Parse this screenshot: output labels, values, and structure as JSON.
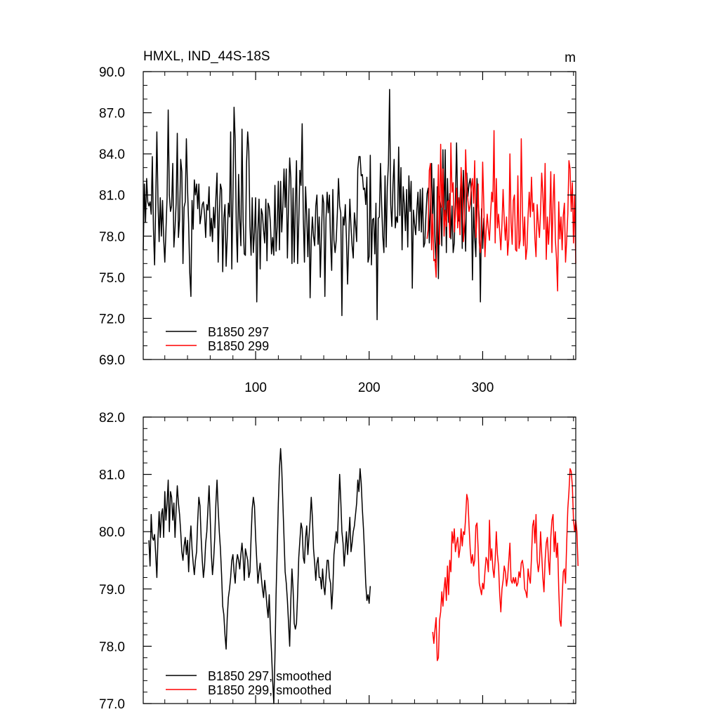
{
  "chart_data": [
    {
      "type": "line",
      "title": "HMXL, IND_44S-18S",
      "units": "m",
      "xlim": [
        1,
        382
      ],
      "ylim": [
        69.0,
        90.0
      ],
      "x_ticks": [
        100,
        200,
        300
      ],
      "x_tick_labels": [
        "100",
        "200",
        "300"
      ],
      "y_ticks": [
        69.0,
        72.0,
        75.0,
        78.0,
        81.0,
        84.0,
        87.0,
        90.0
      ],
      "y_tick_labels": [
        "69.0",
        "72.0",
        "75.0",
        "78.0",
        "81.0",
        "84.0",
        "87.0",
        "90.0"
      ],
      "grid": false,
      "legend_position": "bottom-left",
      "series": [
        {
          "name": "B1850 297",
          "color": "#000000",
          "x_start": 1,
          "values": [
            77.0,
            81.8,
            79.0,
            82.2,
            80.5,
            80.2,
            80.5,
            79.6,
            83.8,
            78.5,
            75.9,
            80.4,
            85.6,
            80.5,
            77.6,
            80.8,
            78.0,
            80.6,
            77.8,
            76.1,
            78.4,
            80.8,
            87.2,
            81.0,
            79.8,
            80.2,
            83.3,
            77.2,
            78.6,
            80.4,
            85.5,
            77.9,
            79.2,
            83.6,
            82.7,
            76.0,
            80.1,
            80.5,
            85.1,
            81.5,
            78.9,
            75.3,
            73.6,
            80.6,
            78.5,
            82.1,
            81.0,
            81.8,
            80.0,
            81.8,
            78.9,
            79.5,
            80.3,
            80.5,
            79.6,
            77.9,
            80.3,
            79.9,
            81.6,
            78.0,
            79.3,
            77.6,
            80.1,
            78.6,
            80.8,
            82.6,
            76.1,
            79.6,
            81.8,
            81.4,
            75.4,
            79.3,
            80.3,
            75.8,
            77.9,
            80.4,
            79.4,
            85.6,
            75.6,
            80.8,
            87.4,
            85.0,
            78.5,
            76.1,
            82.5,
            79.2,
            77.3,
            85.8,
            79.1,
            76.7,
            76.6,
            83.3,
            85.6,
            84.2,
            78.7,
            76.6,
            80.8,
            76.8,
            78.3,
            80.8,
            73.2,
            78.4,
            80.7,
            75.6,
            80.0,
            79.6,
            78.4,
            77.5,
            80.7,
            76.2,
            80.4,
            80.1,
            79.0,
            76.7,
            77.9,
            76.6,
            81.7,
            76.9,
            78.7,
            82.0,
            77.0,
            82.0,
            78.3,
            80.2,
            82.9,
            80.1,
            82.9,
            76.4,
            80.2,
            83.7,
            82.2,
            76.0,
            81.5,
            76.1,
            80.4,
            83.5,
            76.0,
            79.0,
            82.8,
            81.7,
            86.2,
            79.3,
            76.1,
            81.6,
            79.5,
            76.5,
            80.0,
            73.5,
            77.7,
            79.4,
            78.0,
            77.3,
            80.2,
            81.0,
            77.4,
            79.4,
            75.0,
            78.2,
            81.0,
            80.4,
            73.6,
            79.3,
            81.2,
            79.7,
            81.0,
            77.6,
            75.5,
            81.4,
            77.7,
            76.8,
            77.7,
            79.7,
            82.2,
            80.2,
            79.7,
            72.2,
            79.4,
            78.8,
            80.3,
            77.8,
            74.5,
            77.5,
            80.7,
            78.7,
            77.3,
            76.4,
            79.7,
            78.8,
            77.6,
            82.9,
            83.8,
            83.8,
            82.4,
            82.5,
            81.4,
            81.5,
            80.3,
            82.3,
            76.1,
            76.5,
            83.9,
            75.9,
            79.2,
            79.3,
            76.7,
            80.4,
            71.9,
            79.3,
            79.4,
            83.3,
            80.3,
            78.0,
            76.8,
            82.4,
            77.2,
            81.6,
            83.3,
            88.7,
            80.3,
            78.7,
            81.8,
            83.6,
            78.6,
            79.4,
            79.0,
            84.5,
            79.5,
            83.0,
            77.0,
            81.6,
            80.3,
            78.4,
            81.4,
            77.2,
            82.4,
            79.8,
            82.0,
            74.2,
            79.9,
            78.9,
            78.1,
            79.9,
            81.2,
            78.4,
            81.4,
            78.3,
            81.5,
            77.2,
            77.5,
            79.5,
            81.1,
            81.5,
            77.5,
            80.3,
            83.3,
            79.1,
            82.2,
            77.6,
            76.1,
            81.6,
            74.9,
            80.9,
            80.2,
            77.3,
            84.3,
            79.2,
            84.3,
            76.8,
            82.2,
            79.0,
            81.1,
            77.8,
            80.2,
            76.8,
            77.5,
            80.6,
            84.8,
            80.3,
            79.1,
            80.6,
            82.4,
            77.1,
            82.8,
            79.6,
            76.9,
            82.6,
            80.9,
            81.8,
            82.2,
            81.2,
            74.8,
            80.1,
            77.9,
            76.5,
            82.2,
            80.6,
            79.3,
            73.2,
            80.0,
            77.1,
            79.3,
            77.2
          ]
        },
        {
          "name": "B1850 299",
          "color": "#ff0000",
          "x_start": 251,
          "values": [
            77.8,
            78.5,
            82.8,
            83.3,
            77.0,
            79.6,
            76.2,
            76.3,
            75.0,
            79.2,
            83.2,
            77.4,
            84.7,
            80.1,
            82.9,
            78.0,
            79.9,
            78.7,
            80.5,
            80.6,
            77.9,
            84.8,
            81.2,
            81.9,
            78.3,
            79.6,
            81.5,
            78.6,
            80.8,
            78.1,
            83.0,
            81.3,
            77.6,
            79.0,
            84.3,
            81.5,
            80.6,
            79.8,
            80.3,
            81.6,
            82.2,
            80.4,
            83.5,
            77.9,
            79.4,
            81.8,
            77.5,
            76.8,
            78.3,
            83.4,
            80.3,
            76.5,
            78.4,
            79.6,
            78.5,
            77.7,
            79.6,
            81.2,
            80.5,
            85.7,
            77.5,
            82.2,
            78.6,
            79.6,
            78.3,
            77.0,
            78.9,
            81.4,
            79.1,
            77.7,
            79.4,
            76.6,
            77.8,
            84.0,
            79.0,
            77.4,
            80.6,
            81.0,
            77.0,
            76.9,
            82.4,
            77.1,
            77.7,
            85.1,
            79.9,
            77.3,
            79.4,
            76.3,
            77.1,
            79.5,
            81.2,
            79.4,
            82.3,
            79.8,
            80.4,
            77.8,
            76.5,
            80.3,
            78.9,
            77.9,
            79.8,
            82.6,
            81.1,
            78.5,
            83.3,
            76.3,
            79.4,
            77.4,
            79.2,
            82.7,
            76.8,
            80.5,
            82.5,
            77.8,
            76.4,
            74.0,
            80.5,
            77.8,
            79.4,
            77.0,
            79.5,
            80.4,
            76.1,
            77.7,
            79.6,
            83.5,
            82.9,
            79.8,
            81.9,
            77.5,
            81.0,
            76.0
          ]
        }
      ]
    },
    {
      "type": "line",
      "xlim": [
        1,
        382
      ],
      "ylim": [
        77.0,
        82.0
      ],
      "x_ticks": [
        100,
        200,
        300
      ],
      "x_tick_labels": [],
      "y_ticks": [
        77.0,
        78.0,
        79.0,
        80.0,
        81.0,
        82.0
      ],
      "y_tick_labels": [
        "77.0",
        "78.0",
        "79.0",
        "80.0",
        "81.0",
        "82.0"
      ],
      "grid": false,
      "legend_position": "bottom-left",
      "series": [
        {
          "name": "B1850 297, smoothed",
          "color": "#000000",
          "x_start": 6,
          "values": [
            79.85,
            79.4,
            80.3,
            79.9,
            79.85,
            79.95,
            79.6,
            79.2,
            79.9,
            80.35,
            79.9,
            80.3,
            80.4,
            79.9,
            80.7,
            80.2,
            80.5,
            80.9,
            80.0,
            80.7,
            80.6,
            80.2,
            80.5,
            79.9,
            80.4,
            80.8,
            80.5,
            80.3,
            80.0,
            79.65,
            79.5,
            79.75,
            79.9,
            79.6,
            79.85,
            79.3,
            79.8,
            80.1,
            79.7,
            79.45,
            79.25,
            79.5,
            79.65,
            80.2,
            80.6,
            80.45,
            79.9,
            79.5,
            79.2,
            79.4,
            79.8,
            80.0,
            80.4,
            80.8,
            80.25,
            79.6,
            79.25,
            79.5,
            79.9,
            80.5,
            80.9,
            80.4,
            80.0,
            79.7,
            79.25,
            78.7,
            78.55,
            78.2,
            77.95,
            78.5,
            78.85,
            79.0,
            79.2,
            79.5,
            79.6,
            79.3,
            79.1,
            79.45,
            79.6,
            79.5,
            79.35,
            79.6,
            79.8,
            79.55,
            79.15,
            79.7,
            79.6,
            79.5,
            79.2,
            79.3,
            79.9,
            80.4,
            80.6,
            80.45,
            79.9,
            79.5,
            79.1,
            79.3,
            79.45,
            79.2,
            79.0,
            78.85,
            79.15,
            78.95,
            78.7,
            78.5,
            78.9,
            78.3,
            77.9,
            77.4,
            77.0,
            77.8,
            78.9,
            79.7,
            80.5,
            81.1,
            81.45,
            81.1,
            80.5,
            79.9,
            79.3,
            79.1,
            78.8,
            78.4,
            78.0,
            78.8,
            79.35,
            79.0,
            78.4,
            78.3,
            78.4,
            78.9,
            79.55,
            79.85,
            80.15,
            80.05,
            79.55,
            79.45,
            79.9,
            80.1,
            79.6,
            79.9,
            80.2,
            80.6,
            80.25,
            79.7,
            79.45,
            79.15,
            79.45,
            79.55,
            79.2,
            79.2,
            79.0,
            79.35,
            79.05,
            78.9,
            79.2,
            79.5,
            79.5,
            79.2,
            79.1,
            78.65,
            79.0,
            79.6,
            79.8,
            80.0,
            79.8,
            80.4,
            81.0,
            80.55,
            80.0,
            79.8,
            79.4,
            79.7,
            80.0,
            79.6,
            79.9,
            80.25,
            79.65,
            79.8,
            80.0,
            80.1,
            80.3,
            80.5,
            80.9,
            80.7,
            81.1,
            80.85,
            80.4,
            80.05,
            79.6,
            79.1,
            78.8,
            78.9,
            78.75,
            79.05
          ]
        },
        {
          "name": "B1850 299, smoothed",
          "color": "#ff0000",
          "x_start": 256,
          "values": [
            78.25,
            78.05,
            78.3,
            78.5,
            77.75,
            77.8,
            78.45,
            78.6,
            78.95,
            78.7,
            79.0,
            79.2,
            78.8,
            79.4,
            78.9,
            79.5,
            79.3,
            80.0,
            79.8,
            80.05,
            79.65,
            79.8,
            79.9,
            79.55,
            79.7,
            80.05,
            79.75,
            80.0,
            79.95,
            80.25,
            80.65,
            80.55,
            80.1,
            79.7,
            79.45,
            79.6,
            79.4,
            79.5,
            80.1,
            80.15,
            79.7,
            79.1,
            79.0,
            78.9,
            79.1,
            79.0,
            79.3,
            79.55,
            79.5,
            79.3,
            80.2,
            79.5,
            79.7,
            79.35,
            79.2,
            79.5,
            80.0,
            79.6,
            79.4,
            78.9,
            78.6,
            79.0,
            79.15,
            79.4,
            79.3,
            79.05,
            79.2,
            79.5,
            79.8,
            79.15,
            79.1,
            79.2,
            79.1,
            79.2,
            79.05,
            79.1,
            79.3,
            79.2,
            79.45,
            79.5,
            79.35,
            79.0,
            78.95,
            78.85,
            79.35,
            79.2,
            79.1,
            79.55,
            80.1,
            80.2,
            79.8,
            80.3,
            79.5,
            79.3,
            79.45,
            80.0,
            79.6,
            79.2,
            78.95,
            79.5,
            79.8,
            79.9,
            79.5,
            79.25,
            79.9,
            80.2,
            80.3,
            79.65,
            80.0,
            79.55,
            79.8,
            79.0,
            78.45,
            78.35,
            78.85,
            79.3,
            79.35,
            79.1,
            79.8,
            80.4,
            80.7,
            81.1,
            81.05,
            80.8,
            80.2,
            80.0,
            80.2,
            80.0,
            79.4
          ]
        }
      ]
    }
  ]
}
